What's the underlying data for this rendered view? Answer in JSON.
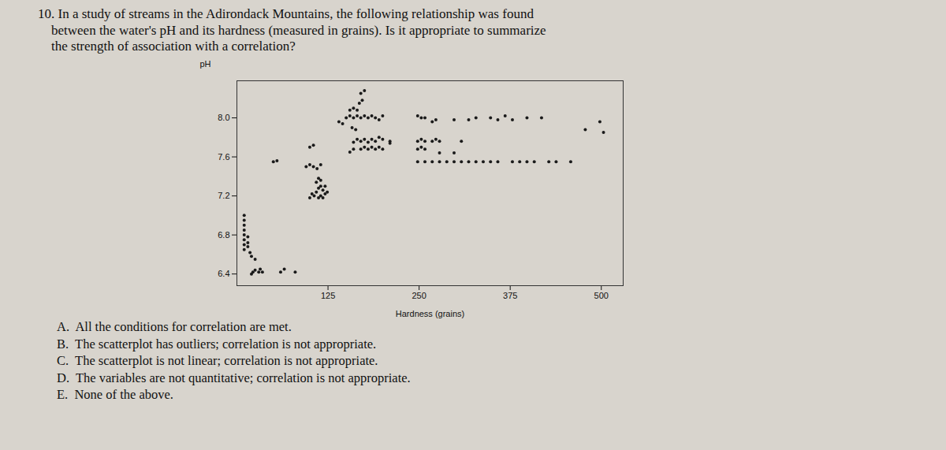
{
  "chart_data": {
    "type": "scatter",
    "title": [
      "10. In a study of streams in the Adirondack Mountains, the following relationship was found",
      "    between the water's pH and its hardness (measured in grains). Is it appropriate to summarize",
      "    the strength of association with a correlation?"
    ],
    "annotations": [
      "A.  All the conditions for correlation are met.",
      "B.  The scatterplot has outliers; correlation is not appropriate.",
      "C.  The scatterplot is not linear; correlation is not appropriate.",
      "D.  The variables are not quantitative; correlation is not appropriate.",
      "E.  None of the above."
    ],
    "xlabel": "Hardness (grains)",
    "ylabel": "pH",
    "xlim": [
      0,
      530
    ],
    "ylim": [
      6.28,
      8.38
    ],
    "xticks": [
      125,
      250,
      375,
      500
    ],
    "yticks": [
      6.4,
      6.8,
      7.2,
      7.6,
      {
        "value": 8.0,
        "label": "8.0"
      }
    ],
    "grid": false,
    "color": "#1a1a1a",
    "x": [
      10,
      10,
      10,
      10,
      10,
      10,
      10,
      10,
      15,
      15,
      15,
      18,
      20,
      20,
      22,
      25,
      30,
      32,
      25,
      35,
      60,
      65,
      80,
      95,
      100,
      105,
      110,
      115,
      50,
      55,
      100,
      103,
      106,
      109,
      112,
      115,
      118,
      121,
      112,
      115,
      118,
      121,
      124,
      109,
      112,
      115,
      100,
      105,
      150,
      155,
      160,
      165,
      170,
      175,
      180,
      185,
      190,
      195,
      200,
      155,
      160,
      165,
      168,
      172,
      170,
      175,
      140,
      145,
      158,
      163,
      160,
      165,
      170,
      175,
      180,
      185,
      190,
      195,
      200,
      210,
      170,
      175,
      180,
      185,
      190,
      195,
      200,
      155,
      160,
      210,
      248,
      253,
      258,
      268,
      273,
      278,
      248,
      253,
      258,
      278,
      298,
      308,
      248,
      258,
      268,
      278,
      288,
      298,
      308,
      318,
      328,
      338,
      348,
      248,
      253,
      258,
      268,
      273,
      298,
      318,
      328,
      348,
      358,
      398,
      358,
      378,
      388,
      398,
      408,
      428,
      438,
      458,
      498,
      368,
      418,
      378,
      478,
      503
    ],
    "values": [
      6.65,
      6.7,
      6.75,
      6.8,
      6.85,
      6.9,
      6.95,
      7.0,
      6.68,
      6.72,
      6.78,
      6.62,
      6.58,
      6.4,
      6.42,
      6.44,
      6.42,
      6.45,
      6.55,
      6.42,
      6.42,
      6.45,
      6.42,
      7.5,
      7.52,
      7.5,
      7.48,
      7.52,
      7.55,
      7.56,
      7.18,
      7.22,
      7.2,
      7.24,
      7.18,
      7.2,
      7.18,
      7.22,
      7.28,
      7.3,
      7.26,
      7.3,
      7.24,
      7.34,
      7.38,
      7.36,
      7.7,
      7.72,
      8.0,
      8.02,
      8.0,
      8.02,
      8.0,
      8.02,
      8.0,
      8.02,
      8.0,
      7.98,
      8.02,
      8.08,
      8.1,
      8.08,
      8.15,
      8.18,
      8.25,
      8.28,
      7.96,
      7.94,
      7.9,
      7.88,
      7.75,
      7.78,
      7.76,
      7.78,
      7.75,
      7.78,
      7.76,
      7.8,
      7.78,
      7.76,
      7.68,
      7.7,
      7.68,
      7.7,
      7.68,
      7.7,
      7.68,
      7.65,
      7.68,
      7.74,
      7.76,
      7.78,
      7.76,
      7.76,
      7.78,
      7.76,
      7.68,
      7.7,
      7.68,
      7.64,
      7.64,
      7.76,
      7.55,
      7.55,
      7.55,
      7.55,
      7.55,
      7.55,
      7.55,
      7.55,
      7.55,
      7.55,
      7.55,
      8.02,
      8.0,
      8.0,
      7.96,
      7.98,
      7.98,
      7.98,
      8.0,
      8.0,
      7.98,
      8.0,
      7.55,
      7.55,
      7.55,
      7.55,
      7.55,
      7.55,
      7.55,
      7.55,
      7.96,
      8.02,
      8.0,
      7.98,
      7.88,
      7.85
    ]
  }
}
